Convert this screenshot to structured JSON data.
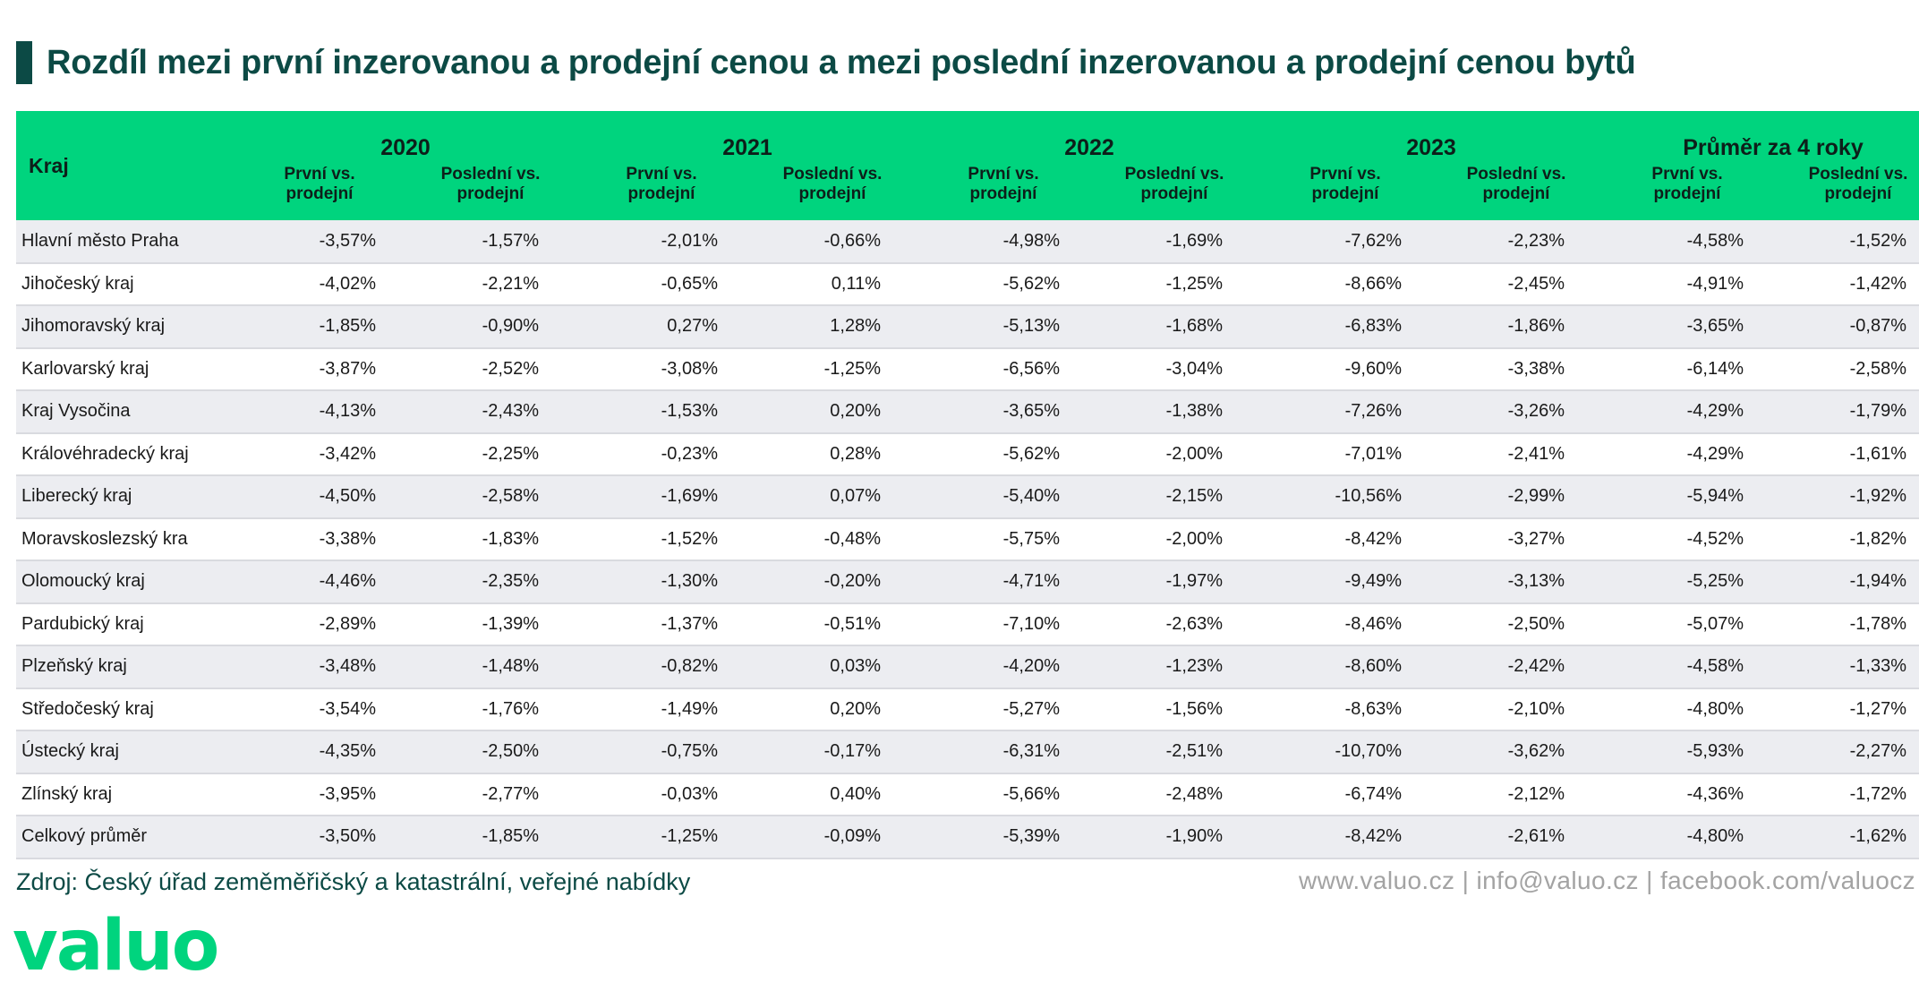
{
  "title": "Rozdíl mezi první inzerovanou a prodejní cenou a mezi poslední inzerovanou a prodejní cenou bytů",
  "table": {
    "kraj_header": "Kraj",
    "years": [
      "2020",
      "2021",
      "2022",
      "2023",
      "Průměr za 4 roky"
    ],
    "sub_a": "První vs. prodejní",
    "sub_b": "Poslední vs. prodejní",
    "rows": [
      {
        "kraj": "Hlavní město Praha",
        "values": [
          "-3,57%",
          "-1,57%",
          "-2,01%",
          "-0,66%",
          "-4,98%",
          "-1,69%",
          "-7,62%",
          "-2,23%",
          "-4,58%",
          "-1,52%"
        ]
      },
      {
        "kraj": "Jihočeský kraj",
        "values": [
          "-4,02%",
          "-2,21%",
          "-0,65%",
          "0,11%",
          "-5,62%",
          "-1,25%",
          "-8,66%",
          "-2,45%",
          "-4,91%",
          "-1,42%"
        ]
      },
      {
        "kraj": "Jihomoravský kraj",
        "values": [
          "-1,85%",
          "-0,90%",
          "0,27%",
          "1,28%",
          "-5,13%",
          "-1,68%",
          "-6,83%",
          "-1,86%",
          "-3,65%",
          "-0,87%"
        ]
      },
      {
        "kraj": "Karlovarský kraj",
        "values": [
          "-3,87%",
          "-2,52%",
          "-3,08%",
          "-1,25%",
          "-6,56%",
          "-3,04%",
          "-9,60%",
          "-3,38%",
          "-6,14%",
          "-2,58%"
        ]
      },
      {
        "kraj": "Kraj Vysočina",
        "values": [
          "-4,13%",
          "-2,43%",
          "-1,53%",
          "0,20%",
          "-3,65%",
          "-1,38%",
          "-7,26%",
          "-3,26%",
          "-4,29%",
          "-1,79%"
        ]
      },
      {
        "kraj": "Královéhradecký kraj",
        "values": [
          "-3,42%",
          "-2,25%",
          "-0,23%",
          "0,28%",
          "-5,62%",
          "-2,00%",
          "-7,01%",
          "-2,41%",
          "-4,29%",
          "-1,61%"
        ]
      },
      {
        "kraj": "Liberecký kraj",
        "values": [
          "-4,50%",
          "-2,58%",
          "-1,69%",
          "0,07%",
          "-5,40%",
          "-2,15%",
          "-10,56%",
          "-2,99%",
          "-5,94%",
          "-1,92%"
        ]
      },
      {
        "kraj": "Moravskoslezský kra",
        "values": [
          "-3,38%",
          "-1,83%",
          "-1,52%",
          "-0,48%",
          "-5,75%",
          "-2,00%",
          "-8,42%",
          "-3,27%",
          "-4,52%",
          "-1,82%"
        ]
      },
      {
        "kraj": "Olomoucký kraj",
        "values": [
          "-4,46%",
          "-2,35%",
          "-1,30%",
          "-0,20%",
          "-4,71%",
          "-1,97%",
          "-9,49%",
          "-3,13%",
          "-5,25%",
          "-1,94%"
        ]
      },
      {
        "kraj": "Pardubický kraj",
        "values": [
          "-2,89%",
          "-1,39%",
          "-1,37%",
          "-0,51%",
          "-7,10%",
          "-2,63%",
          "-8,46%",
          "-2,50%",
          "-5,07%",
          "-1,78%"
        ]
      },
      {
        "kraj": "Plzeňský kraj",
        "values": [
          "-3,48%",
          "-1,48%",
          "-0,82%",
          "0,03%",
          "-4,20%",
          "-1,23%",
          "-8,60%",
          "-2,42%",
          "-4,58%",
          "-1,33%"
        ]
      },
      {
        "kraj": "Středočeský kraj",
        "values": [
          "-3,54%",
          "-1,76%",
          "-1,49%",
          "0,20%",
          "-5,27%",
          "-1,56%",
          "-8,63%",
          "-2,10%",
          "-4,80%",
          "-1,27%"
        ]
      },
      {
        "kraj": "Ústecký kraj",
        "values": [
          "-4,35%",
          "-2,50%",
          "-0,75%",
          "-0,17%",
          "-6,31%",
          "-2,51%",
          "-10,70%",
          "-3,62%",
          "-5,93%",
          "-2,27%"
        ]
      },
      {
        "kraj": "Zlínský kraj",
        "values": [
          "-3,95%",
          "-2,77%",
          "-0,03%",
          "0,40%",
          "-5,66%",
          "-2,48%",
          "-6,74%",
          "-2,12%",
          "-4,36%",
          "-1,72%"
        ]
      },
      {
        "kraj": "Celkový průměr",
        "values": [
          "-3,50%",
          "-1,85%",
          "-1,25%",
          "-0,09%",
          "-5,39%",
          "-1,90%",
          "-8,42%",
          "-2,61%",
          "-4,80%",
          "-1,62%"
        ]
      }
    ]
  },
  "footer": {
    "source": "Zdroj: Český úřad zeměměřičský a katastrální, veřejné nabídky",
    "contact": "www.valuo.cz | info@valuo.cz | facebook.com/valuocz"
  },
  "logo": "valuo",
  "colors": {
    "accent_green": "#00d47e",
    "title_dark_teal": "#0c4a45",
    "row_stripe": "#ecedf1"
  }
}
